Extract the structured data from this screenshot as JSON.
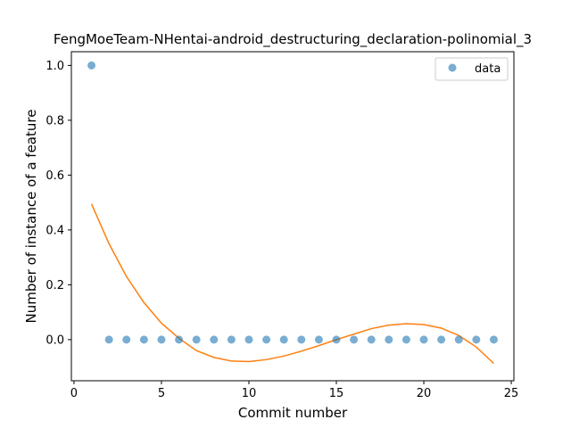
{
  "chart_data": {
    "type": "scatter",
    "title": "FengMoeTeam-NHentai-android_destructuring_declaration-polinomial_3",
    "xlabel": "Commit number",
    "ylabel": "Number of instance of a feature",
    "xlim": [
      -0.15,
      25.15
    ],
    "ylim": [
      -0.15,
      1.05
    ],
    "xticks": [
      0,
      5,
      10,
      15,
      20,
      25
    ],
    "yticks": [
      0.0,
      0.2,
      0.4,
      0.6,
      0.8,
      1.0
    ],
    "xtick_labels": [
      "0",
      "5",
      "10",
      "15",
      "20",
      "25"
    ],
    "ytick_labels": [
      "0.0",
      "0.2",
      "0.4",
      "0.6",
      "0.8",
      "1.0"
    ],
    "legend_placement": "top-right",
    "grid": false,
    "series": [
      {
        "name": "data",
        "kind": "scatter",
        "color": "#1f77b4",
        "x": [
          1,
          2,
          3,
          4,
          5,
          6,
          7,
          8,
          9,
          10,
          11,
          12,
          13,
          14,
          15,
          16,
          17,
          18,
          19,
          20,
          21,
          22,
          23,
          24
        ],
        "y": [
          1,
          0,
          0,
          0,
          0,
          0,
          0,
          0,
          0,
          0,
          0,
          0,
          0,
          0,
          0,
          0,
          0,
          0,
          0,
          0,
          0,
          0,
          0,
          0
        ]
      },
      {
        "kind": "line",
        "color": "#ff7f0e",
        "x": [
          1,
          2,
          3,
          4,
          5,
          6,
          7,
          8,
          9,
          10,
          11,
          12,
          13,
          14,
          15,
          16,
          17,
          18,
          19,
          20,
          21,
          22,
          23,
          24
        ],
        "y": [
          0.495,
          0.35,
          0.23,
          0.135,
          0.06,
          0.005,
          -0.04,
          -0.065,
          -0.078,
          -0.08,
          -0.073,
          -0.06,
          -0.042,
          -0.022,
          0.0,
          0.02,
          0.04,
          0.053,
          0.058,
          0.055,
          0.042,
          0.015,
          -0.027,
          -0.087
        ]
      }
    ]
  }
}
